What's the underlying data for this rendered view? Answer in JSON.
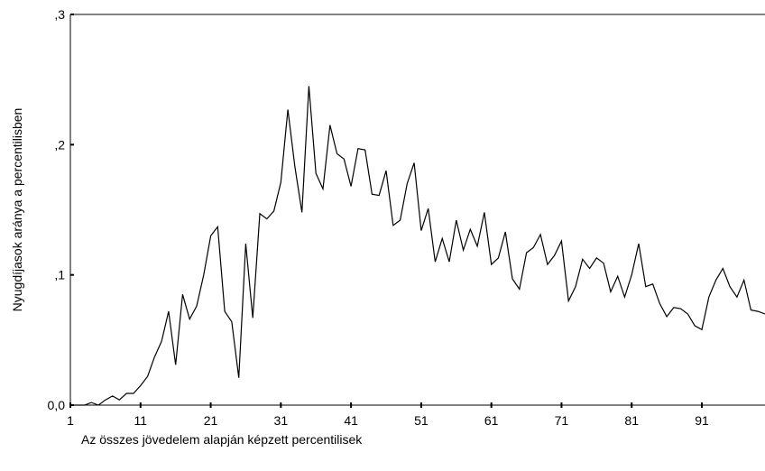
{
  "chart_data": {
    "type": "line",
    "title": "",
    "xlabel": "Az összes jövedelem alapján képzett percentilisek",
    "ylabel": "Nyugdíjasok aránya a percentilisben",
    "xlim": [
      1,
      100
    ],
    "ylim": [
      0,
      0.3
    ],
    "x_ticks": [
      1,
      11,
      21,
      31,
      41,
      51,
      61,
      71,
      81,
      91
    ],
    "x_tick_labels": [
      "1",
      "11",
      "21",
      "31",
      "41",
      "51",
      "61",
      "71",
      "81",
      "91"
    ],
    "y_ticks": [
      0,
      0.1,
      0.2,
      0.3
    ],
    "y_tick_labels": [
      "0,0",
      ",1",
      ",2",
      ",3"
    ],
    "grid": false,
    "legend": "none",
    "line_color": "#000000",
    "series": [
      {
        "x": [
          1,
          2,
          3,
          4,
          5,
          6,
          7,
          8,
          9,
          10,
          11,
          12,
          13,
          14,
          15,
          16,
          17,
          18,
          19,
          20,
          21,
          22,
          23,
          24,
          25,
          26,
          27,
          28,
          29,
          30,
          31,
          32,
          33,
          34,
          35,
          36,
          37,
          38,
          39,
          40,
          41,
          42,
          43,
          44,
          45,
          46,
          47,
          48,
          49,
          50,
          51,
          52,
          53,
          54,
          55,
          56,
          57,
          58,
          59,
          60,
          61,
          62,
          63,
          64,
          65,
          66,
          67,
          68,
          69,
          70,
          71,
          72,
          73,
          74,
          75,
          76,
          77,
          78,
          79,
          80,
          81,
          82,
          83,
          84,
          85,
          86,
          87,
          88,
          89,
          90,
          91,
          92,
          93,
          94,
          95,
          96,
          97,
          98,
          99,
          100
        ],
        "values": [
          0.0,
          0.0,
          0.0,
          0.002,
          0.0,
          0.004,
          0.007,
          0.004,
          0.009,
          0.009,
          0.015,
          0.022,
          0.037,
          0.049,
          0.072,
          0.031,
          0.085,
          0.066,
          0.076,
          0.1,
          0.13,
          0.137,
          0.072,
          0.064,
          0.021,
          0.124,
          0.067,
          0.147,
          0.143,
          0.149,
          0.171,
          0.227,
          0.183,
          0.148,
          0.245,
          0.178,
          0.166,
          0.215,
          0.193,
          0.189,
          0.168,
          0.197,
          0.196,
          0.162,
          0.161,
          0.18,
          0.138,
          0.142,
          0.17,
          0.186,
          0.134,
          0.151,
          0.11,
          0.128,
          0.11,
          0.142,
          0.119,
          0.135,
          0.122,
          0.148,
          0.108,
          0.113,
          0.133,
          0.097,
          0.089,
          0.117,
          0.121,
          0.131,
          0.108,
          0.115,
          0.126,
          0.08,
          0.091,
          0.112,
          0.105,
          0.113,
          0.109,
          0.087,
          0.099,
          0.083,
          0.1,
          0.124,
          0.091,
          0.093,
          0.078,
          0.068,
          0.075,
          0.074,
          0.07,
          0.061,
          0.058,
          0.083,
          0.096,
          0.105,
          0.091,
          0.083,
          0.096,
          0.073,
          0.072,
          0.07
        ]
      }
    ]
  }
}
